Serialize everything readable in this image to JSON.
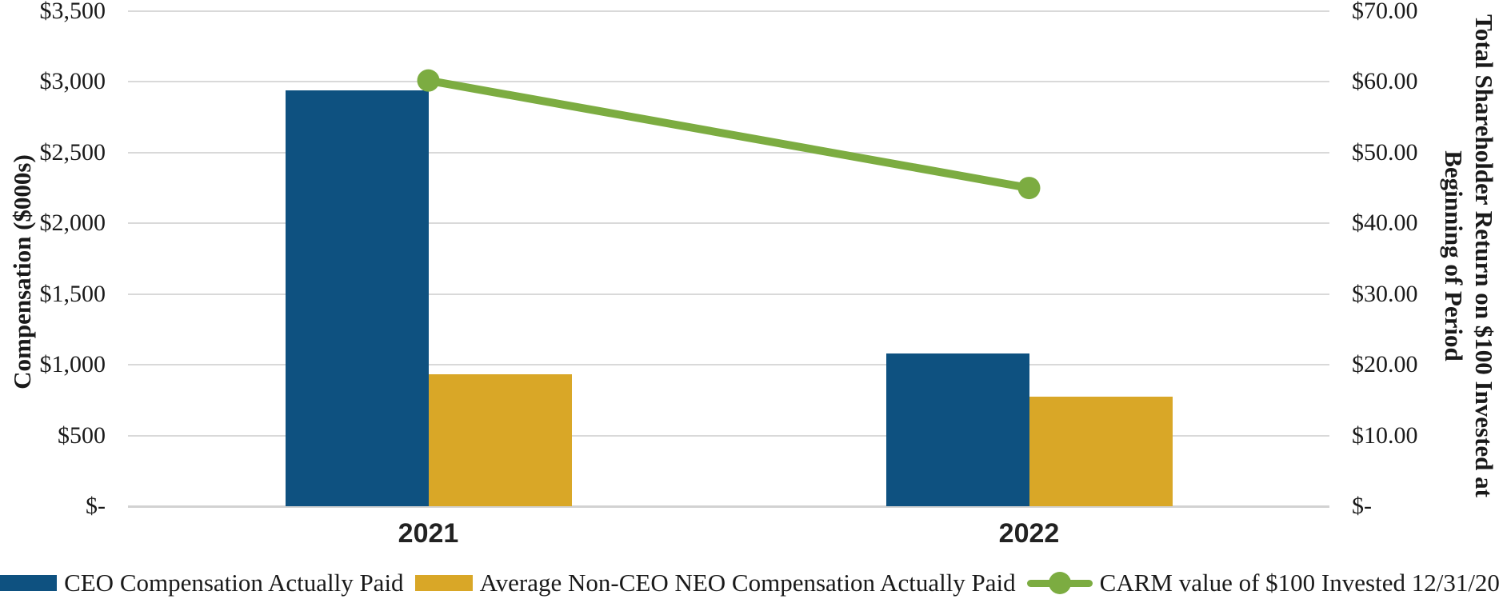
{
  "chart_data": {
    "type": "combo_bar_line",
    "categories": [
      "2021",
      "2022"
    ],
    "series": [
      {
        "name": "CEO Compensation Actually Paid",
        "render": "bar",
        "axis": "left",
        "color": "#0e5180",
        "values": [
          2940,
          1080
        ]
      },
      {
        "name": "Average Non-CEO NEO Compensation Actually Paid",
        "render": "bar",
        "axis": "left",
        "color": "#d9a727",
        "values": [
          935,
          775
        ]
      },
      {
        "name": "CARM value of $100 Invested 12/31/20",
        "render": "line",
        "axis": "right",
        "color": "#7cac41",
        "values": [
          60.2,
          45.0
        ]
      }
    ],
    "left_axis": {
      "title": "Compensation ($000s)",
      "min": 0,
      "max": 3500,
      "tick_step": 500,
      "tick_labels": [
        "$-",
        "$500",
        "$1,000",
        "$1,500",
        "$2,000",
        "$2,500",
        "$3,000",
        "$3,500"
      ]
    },
    "right_axis": {
      "title_line1": "Total Shareholder Return on $100 Invested at",
      "title_line2": "Beginning of Period",
      "min": 0,
      "max": 70,
      "tick_step": 10,
      "tick_labels": [
        "$-",
        "$10.00",
        "$20.00",
        "$30.00",
        "$40.00",
        "$50.00",
        "$60.00",
        "$70.00"
      ]
    },
    "grid": true,
    "legend_position": "bottom",
    "colors": {
      "gridline": "#d9d9d9",
      "text": "#1a1a1a",
      "background": "#ffffff"
    }
  }
}
